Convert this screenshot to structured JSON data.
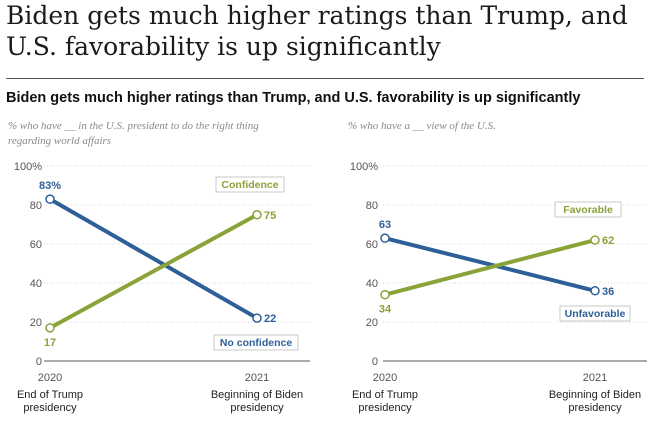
{
  "headline": "Biden gets much higher ratings than Trump, and U.S. favorability is up significantly",
  "subhead": "Biden gets much higher ratings than Trump, and U.S. favorability is up significantly",
  "colors": {
    "blue": "#2e5f97",
    "green": "#8aa339",
    "grid": "#d9d9d9",
    "axis": "#555555"
  },
  "chart_data": [
    {
      "type": "line",
      "subtitle_lines": [
        "% who have __ in the U.S. president to do the right thing",
        "regarding world affairs"
      ],
      "x": [
        "2020",
        "2021"
      ],
      "x_sublabels": [
        [
          "End of Trump",
          "presidency"
        ],
        [
          "Beginning of Biden",
          "presidency"
        ]
      ],
      "ylim": [
        0,
        100
      ],
      "yticks": [
        "0",
        "20",
        "40",
        "60",
        "80",
        "100%"
      ],
      "grid": true,
      "series": [
        {
          "name": "No confidence",
          "values": [
            83,
            22
          ],
          "labels": [
            "83%",
            "22"
          ],
          "color": "blue"
        },
        {
          "name": "Confidence",
          "values": [
            17,
            75
          ],
          "labels": [
            "17",
            "75"
          ],
          "color": "green"
        }
      ]
    },
    {
      "type": "line",
      "subtitle_lines": [
        "% who have a __ view of the U.S."
      ],
      "x": [
        "2020",
        "2021"
      ],
      "x_sublabels": [
        [
          "End of Trump",
          "presidency"
        ],
        [
          "Beginning of Biden",
          "presidency"
        ]
      ],
      "ylim": [
        0,
        100
      ],
      "yticks": [
        "0",
        "20",
        "40",
        "60",
        "80",
        "100%"
      ],
      "grid": true,
      "series": [
        {
          "name": "Unfavorable",
          "values": [
            63,
            36
          ],
          "labels": [
            "63",
            "36"
          ],
          "color": "blue"
        },
        {
          "name": "Favorable",
          "values": [
            34,
            62
          ],
          "labels": [
            "34",
            "62"
          ],
          "color": "green"
        }
      ]
    }
  ]
}
